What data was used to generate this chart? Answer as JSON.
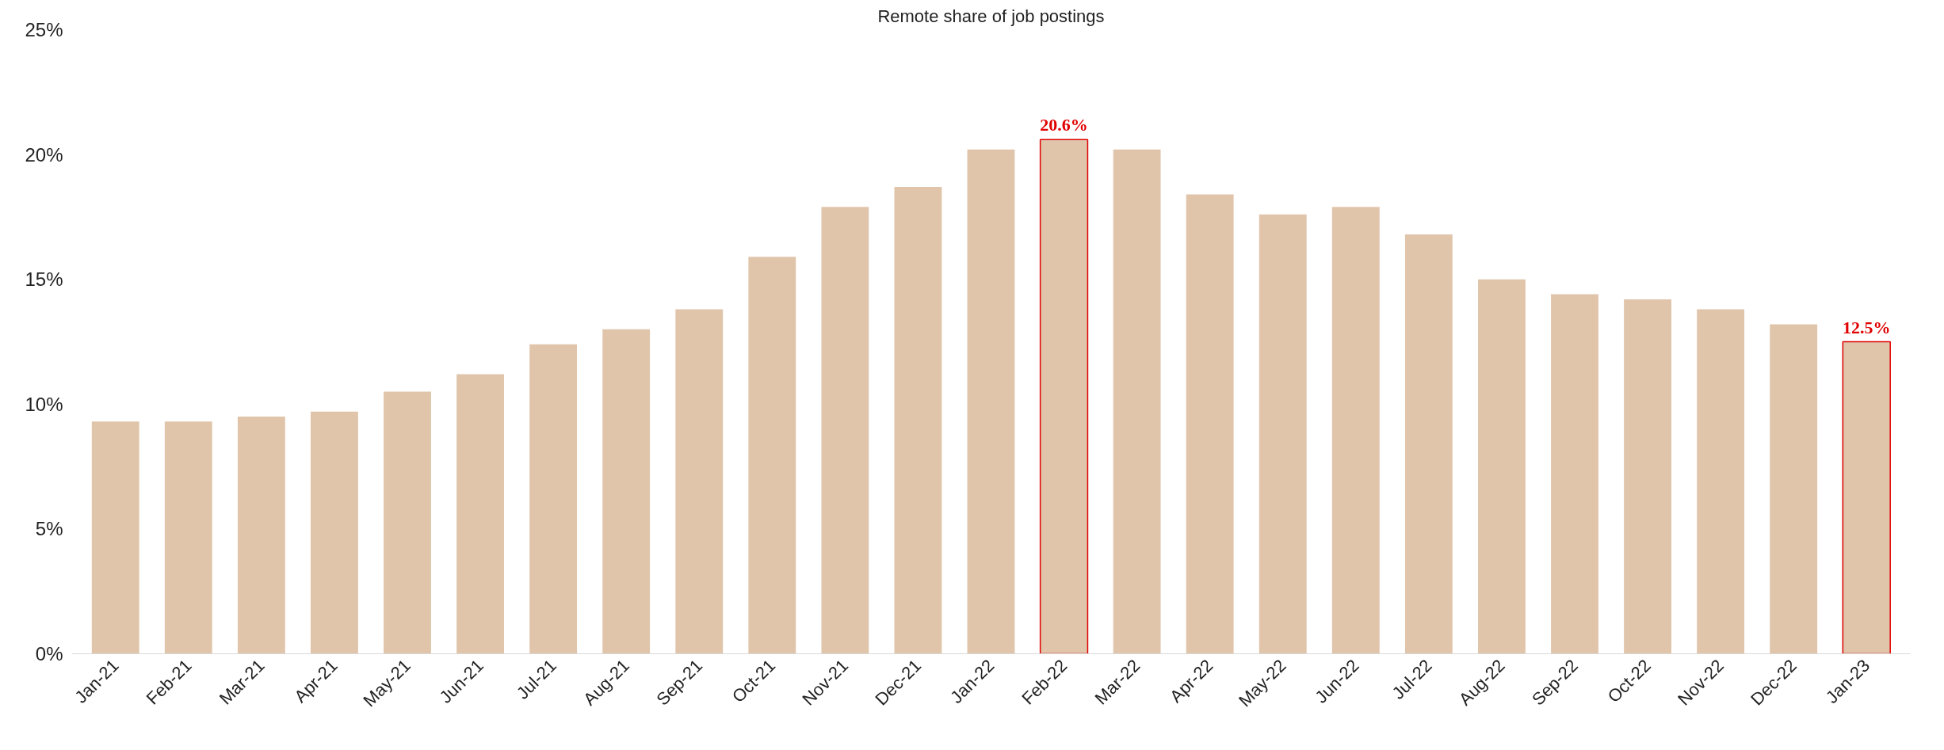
{
  "chart_data": {
    "type": "bar",
    "title": "Remote share of job postings",
    "categories": [
      "Jan-21",
      "Feb-21",
      "Mar-21",
      "Apr-21",
      "May-21",
      "Jun-21",
      "Jul-21",
      "Aug-21",
      "Sep-21",
      "Oct-21",
      "Nov-21",
      "Dec-21",
      "Jan-22",
      "Feb-22",
      "Mar-22",
      "Apr-22",
      "May-22",
      "Jun-22",
      "Jul-22",
      "Aug-22",
      "Sep-22",
      "Oct-22",
      "Nov-22",
      "Dec-22",
      "Jan-23"
    ],
    "values": [
      9.3,
      9.3,
      9.5,
      9.7,
      10.5,
      11.2,
      12.4,
      13.0,
      13.8,
      15.9,
      17.9,
      18.7,
      20.2,
      20.6,
      20.2,
      18.4,
      17.6,
      17.9,
      16.8,
      15.0,
      14.4,
      14.2,
      13.8,
      13.2,
      12.5
    ],
    "value_labels": [
      null,
      null,
      null,
      null,
      null,
      null,
      null,
      null,
      null,
      null,
      null,
      null,
      null,
      "20.6%",
      null,
      null,
      null,
      null,
      null,
      null,
      null,
      null,
      null,
      null,
      "12.5%"
    ],
    "color": "#e0c5ab",
    "ylim": [
      0,
      25
    ],
    "yticks": [
      {
        "value": 0,
        "label": "0%"
      },
      {
        "value": 5,
        "label": "5%"
      },
      {
        "value": 10,
        "label": "10%"
      },
      {
        "value": 15,
        "label": "15%"
      },
      {
        "value": 20,
        "label": "20%"
      },
      {
        "value": 25,
        "label": "25%"
      }
    ],
    "grid": false
  }
}
